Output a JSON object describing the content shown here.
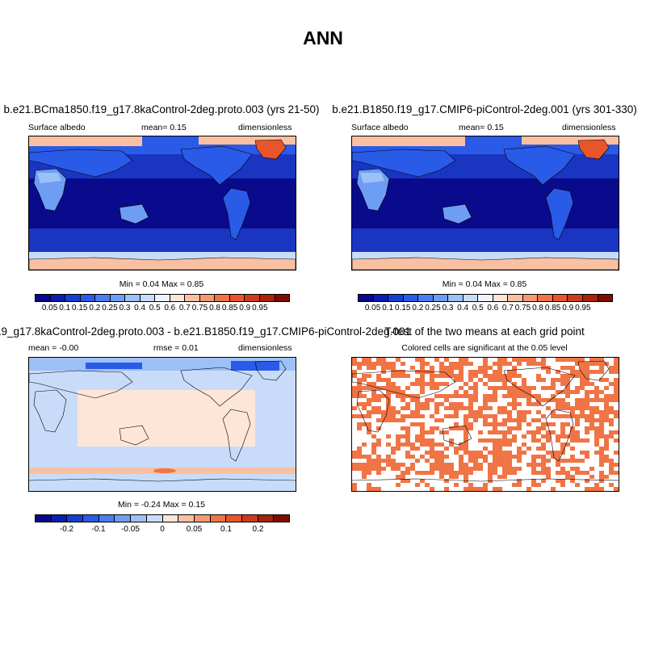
{
  "page": {
    "title": "ANN"
  },
  "panels": {
    "p1": {
      "title": "b.e21.BCma1850.f19_g17.8kaControl-2deg.proto.003 (yrs 21-50)",
      "left": "Surface albedo",
      "center": "mean=  0.15",
      "right": "dimensionless",
      "minmax": "Min =  0.04 Max =   0.85"
    },
    "p2": {
      "title": "b.e21.B1850.f19_g17.CMIP6-piControl-2deg.001 (yrs 301-330)",
      "left": "Surface albedo",
      "center": "mean=  0.15",
      "right": "dimensionless",
      "minmax": "Min =  0.04 Max =   0.85"
    },
    "p3": {
      "title": "19_g17.8kaControl-2deg.proto.003 - b.e21.B1850.f19_g17.CMIP6-piControl-2deg.001",
      "left": "mean =  -0.00",
      "center": "rmse =   0.01",
      "right": "dimensionless",
      "minmax": "Min =  -0.24 Max =   0.15"
    },
    "p4": {
      "title": "T-test of the two means at each grid point",
      "subtitle": "Colored cells are significant at the 0.05 level"
    }
  },
  "colorbars": {
    "albedo": {
      "colors": [
        "#08088a",
        "#0a1fb0",
        "#1440d0",
        "#2a5ae8",
        "#4a7df0",
        "#6e9ef4",
        "#9cc0f7",
        "#c8dcfa",
        "#eef3fd",
        "#fde6d8",
        "#f9c0a2",
        "#f59a70",
        "#f07445",
        "#e8552a",
        "#cf3a1a",
        "#a8220c",
        "#800b02"
      ],
      "labels": [
        "0.05",
        "0.1",
        "0.15",
        "0.2",
        "0.25",
        "0.3",
        "0.4",
        "0.5",
        "0.6",
        "0.7",
        "0.75",
        "0.8",
        "0.85",
        "0.9",
        "0.95"
      ]
    },
    "diff": {
      "colors": [
        "#08088a",
        "#0a1fb0",
        "#1440d0",
        "#2a5ae8",
        "#4a7df0",
        "#6e9ef4",
        "#9cc0f7",
        "#c8dcfa",
        "#fde6d8",
        "#f9c0a2",
        "#f59a70",
        "#f07445",
        "#e8552a",
        "#cf3a1a",
        "#a8220c",
        "#800b02"
      ],
      "labels": [
        "-0.2",
        "-0.1",
        "-0.05",
        "0",
        "0.05",
        "0.1",
        "0.2"
      ]
    }
  },
  "map_colors": {
    "ocean_deep": "#0a0a8c",
    "ocean_mid": "#1a35c2",
    "land": "#2a5ae8",
    "desert": "#9cc0f7",
    "ice": "#f9c0a2",
    "greenland": "#e8552a",
    "diff_neutral": "#fde6d8",
    "diff_neg": "#c8dcfa",
    "signif": "#f07445"
  }
}
